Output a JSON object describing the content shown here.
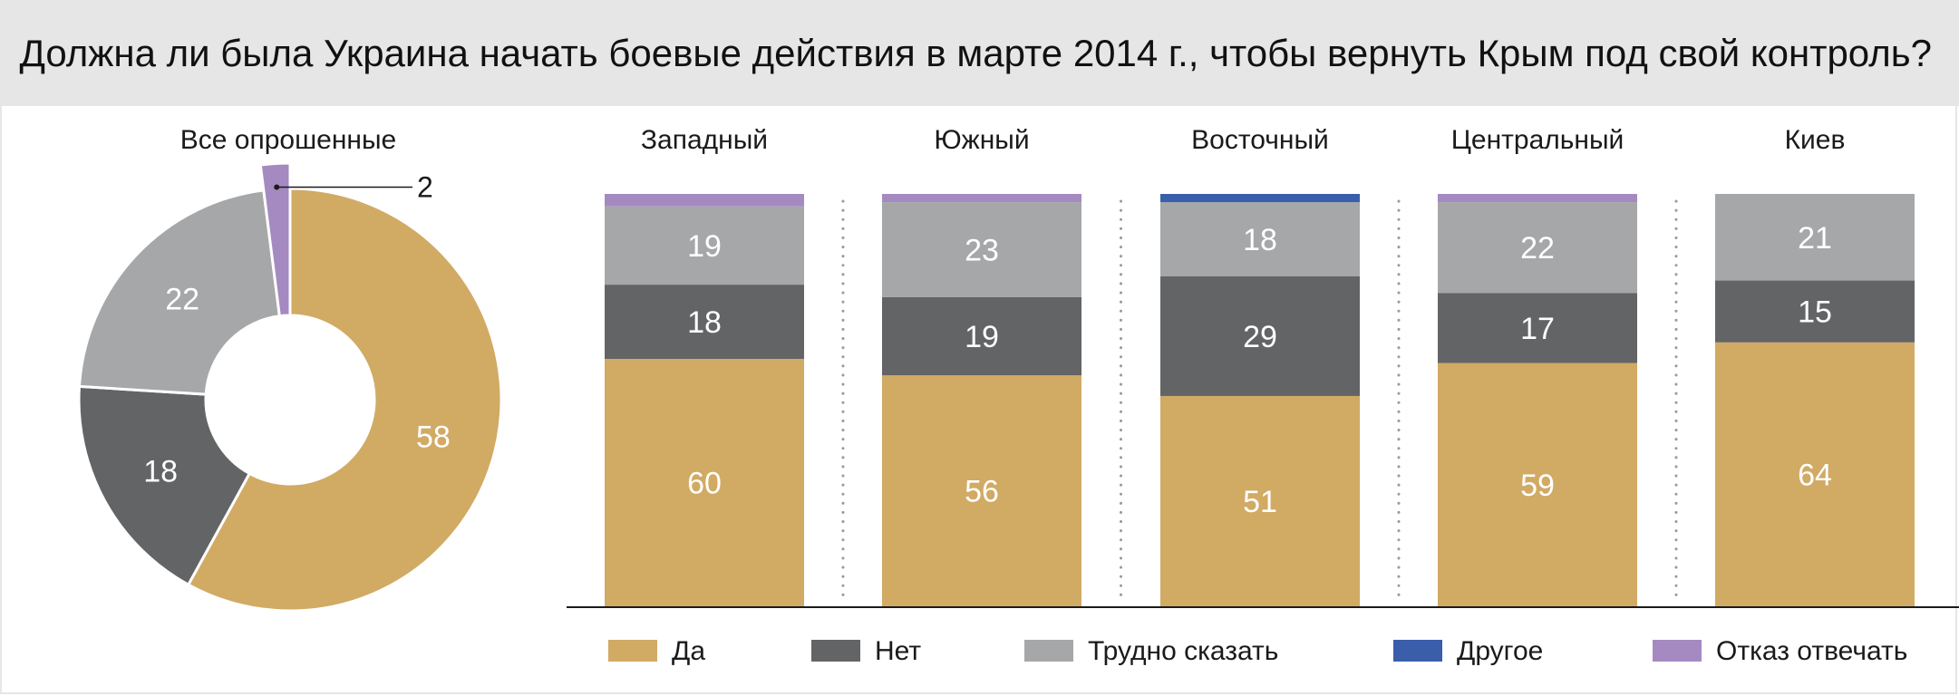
{
  "title": "Должна ли была Украина начать боевые действия в марте 2014 г., чтобы вернуть Крым под свой контроль?",
  "colors": {
    "Да": "#d1aa64",
    "Нет": "#636466",
    "Трудно сказать": "#a6a7a9",
    "Другое": "#3b5eab",
    "Отказ отвечать": "#a58ac1"
  },
  "legend": [
    "Да",
    "Нет",
    "Трудно сказать",
    "Другое",
    "Отказ отвечать"
  ],
  "chart_data": [
    {
      "type": "pie",
      "title": "Все опрошенные",
      "slices": [
        {
          "label": "Да",
          "value": 58
        },
        {
          "label": "Нет",
          "value": 18
        },
        {
          "label": "Трудно сказать",
          "value": 22
        },
        {
          "label": "Отказ отвечать",
          "value": 2
        }
      ]
    },
    {
      "type": "bar",
      "stacked": true,
      "categories": [
        "Западный",
        "Южный",
        "Восточный",
        "Центральный",
        "Киев"
      ],
      "ylim": [
        0,
        100
      ],
      "series": [
        {
          "name": "Да",
          "values": [
            60,
            56,
            51,
            59,
            64
          ]
        },
        {
          "name": "Нет",
          "values": [
            18,
            19,
            29,
            17,
            15
          ]
        },
        {
          "name": "Трудно сказать",
          "values": [
            19,
            23,
            18,
            22,
            21
          ]
        },
        {
          "name": "Другое",
          "values": [
            0,
            0,
            2,
            0,
            0
          ],
          "labeled": false
        },
        {
          "name": "Отказ отвечать",
          "values": [
            3,
            2,
            0,
            2,
            0
          ],
          "labeled": false
        }
      ]
    }
  ]
}
